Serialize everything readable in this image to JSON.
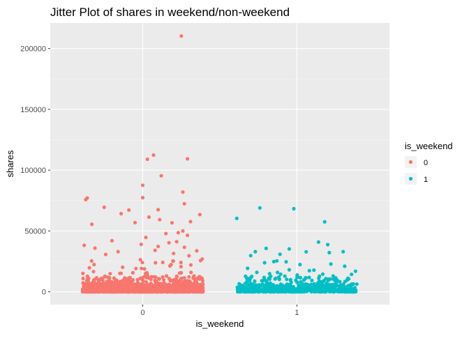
{
  "chart_data": {
    "type": "scatter",
    "title": "Jitter Plot of shares in weekend/non-weekend",
    "xlabel": "is_weekend",
    "ylabel": "shares",
    "x_ticks": [
      "0",
      "1"
    ],
    "y_ticks": [
      "0",
      "50000",
      "100000",
      "150000",
      "200000"
    ],
    "ylim": [
      -10500,
      221000
    ],
    "xlim": [
      -0.6,
      1.6
    ],
    "grid": true,
    "legend": {
      "title": "is_weekend",
      "position": "right",
      "entries": [
        {
          "label": "0",
          "color": "#F8766D"
        },
        {
          "label": "1",
          "color": "#00BFC4"
        }
      ]
    },
    "series": [
      {
        "name": "0",
        "color": "#F8766D",
        "points": [
          [
            0.25,
            210300
          ],
          [
            0.07,
            112400
          ],
          [
            0.03,
            109000
          ],
          [
            0.29,
            109300
          ],
          [
            0.12,
            95400
          ],
          [
            0.0,
            87600
          ],
          [
            0.26,
            82000
          ],
          [
            -0.36,
            77100
          ],
          [
            -0.37,
            75800
          ],
          [
            0.27,
            72400
          ],
          [
            -0.25,
            69500
          ],
          [
            -0.09,
            67200
          ],
          [
            0.1,
            67500
          ],
          [
            0.0,
            77400
          ],
          [
            0.37,
            63500
          ],
          [
            -0.14,
            64200
          ],
          [
            -0.33,
            55500
          ],
          [
            0.04,
            61400
          ],
          [
            0.11,
            59300
          ],
          [
            -0.05,
            56900
          ],
          [
            0.31,
            57700
          ],
          [
            0.19,
            56700
          ],
          [
            0.26,
            50000
          ],
          [
            0.23,
            48600
          ],
          [
            0.15,
            47900
          ],
          [
            0.29,
            46400
          ],
          [
            0.02,
            44700
          ],
          [
            -0.2,
            42000
          ],
          [
            -0.38,
            38200
          ],
          [
            0.17,
            40300
          ],
          [
            0.22,
            41200
          ],
          [
            0.35,
            33700
          ],
          [
            0.1,
            37300
          ],
          [
            -0.01,
            39000
          ],
          [
            0.27,
            36600
          ],
          [
            -0.31,
            35900
          ],
          [
            -0.16,
            33000
          ],
          [
            0.08,
            34100
          ],
          [
            0.3,
            29600
          ],
          [
            -0.24,
            30700
          ],
          [
            0.2,
            31500
          ]
        ],
        "cluster": {
          "center": 0,
          "half_width": 0.39,
          "count": 1500,
          "seed": 11
        }
      },
      {
        "name": "1",
        "color": "#00BFC4",
        "points": [
          [
            0.76,
            69000
          ],
          [
            0.98,
            68300
          ],
          [
            0.61,
            60300
          ],
          [
            1.18,
            57500
          ],
          [
            1.14,
            40900
          ],
          [
            1.2,
            38800
          ],
          [
            0.8,
            35700
          ],
          [
            0.95,
            35200
          ],
          [
            0.73,
            33000
          ],
          [
            1.06,
            32900
          ],
          [
            0.89,
            30900
          ],
          [
            0.7,
            29700
          ],
          [
            1.21,
            32200
          ],
          [
            1.3,
            33000
          ],
          [
            0.87,
            25400
          ],
          [
            0.93,
            24600
          ],
          [
            0.79,
            23900
          ],
          [
            0.85,
            24800
          ],
          [
            1.02,
            22400
          ],
          [
            0.68,
            19300
          ],
          [
            1.22,
            22800
          ],
          [
            1.11,
            17800
          ],
          [
            0.95,
            18100
          ],
          [
            1.31,
            21000
          ],
          [
            0.74,
            16000
          ],
          [
            1.38,
            16900
          ]
        ],
        "cluster": {
          "center": 1,
          "half_width": 0.39,
          "count": 700,
          "seed": 29
        }
      }
    ]
  }
}
